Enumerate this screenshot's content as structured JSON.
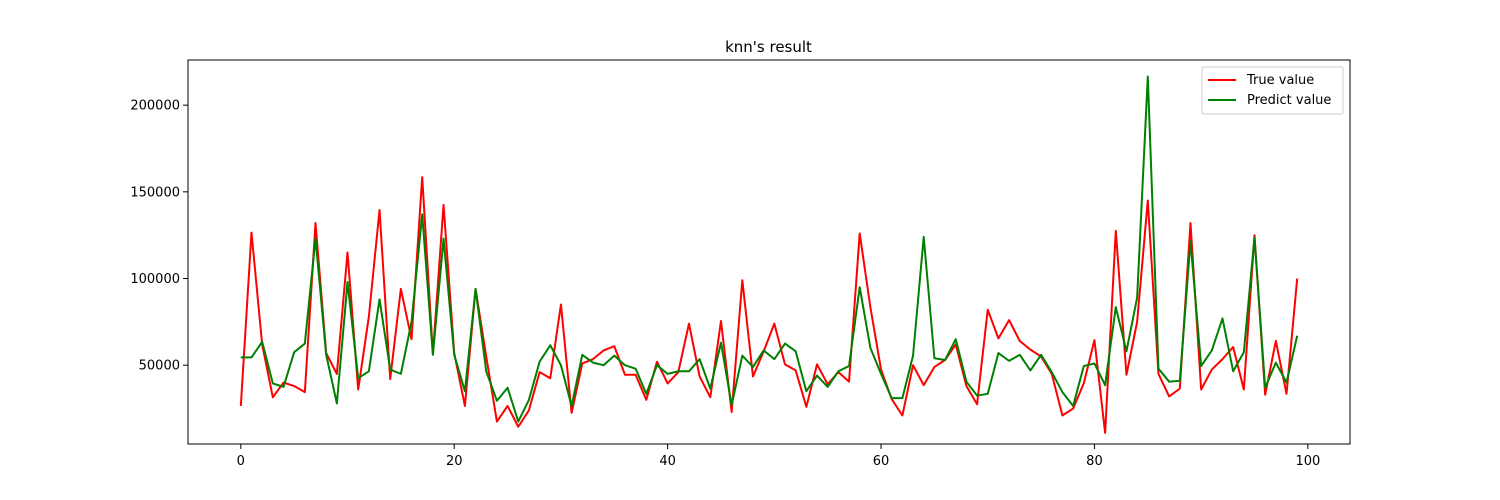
{
  "chart_data": {
    "type": "line",
    "title": "knn's result",
    "xlabel": "",
    "ylabel": "",
    "xlim": [
      -4.95,
      103.95
    ],
    "ylim": [
      4555,
      226045
    ],
    "xticks": [
      0,
      20,
      40,
      60,
      80,
      100
    ],
    "yticks": [
      50000,
      100000,
      150000,
      200000
    ],
    "grid": false,
    "legend_position": "top-right",
    "series": [
      {
        "name": "True value",
        "color": "#ff0000",
        "values": [
          26500,
          126500,
          62000,
          31500,
          40000,
          38000,
          34500,
          132000,
          57000,
          45000,
          115000,
          36000,
          78000,
          139500,
          42000,
          94000,
          65000,
          158500,
          56500,
          142500,
          57000,
          26500,
          94000,
          55000,
          17500,
          26500,
          14500,
          24000,
          46000,
          42500,
          85000,
          22500,
          51000,
          53500,
          58500,
          61000,
          44500,
          44500,
          30000,
          52000,
          39500,
          46000,
          74000,
          43500,
          31500,
          75500,
          23000,
          99000,
          43500,
          58000,
          74000,
          50500,
          47000,
          26000,
          50500,
          39000,
          46000,
          40500,
          126000,
          83500,
          47500,
          30500,
          21000,
          50000,
          38500,
          49000,
          53000,
          62000,
          38000,
          27500,
          82000,
          65500,
          76000,
          64000,
          59000,
          55000,
          45000,
          21000,
          25000,
          39500,
          64500,
          11000,
          127500,
          44500,
          75000,
          145000,
          45000,
          32000,
          36500,
          132000,
          36000,
          47500,
          53500,
          60500,
          36000,
          125000,
          33000,
          64000,
          33500,
          100000
        ]
      },
      {
        "name": "Predict value",
        "color": "#008000",
        "values": [
          54500,
          54500,
          63500,
          39500,
          37500,
          57500,
          62500,
          123000,
          56000,
          28000,
          98000,
          42500,
          46500,
          88000,
          47500,
          45000,
          75000,
          137000,
          56000,
          123000,
          56000,
          35000,
          94000,
          46500,
          29500,
          37000,
          17500,
          30000,
          52000,
          61500,
          50000,
          26500,
          56000,
          51500,
          50000,
          55500,
          50000,
          48000,
          33500,
          50000,
          45000,
          46500,
          46500,
          53500,
          36500,
          63000,
          27000,
          55500,
          49000,
          58500,
          53500,
          62500,
          58000,
          35000,
          44000,
          37500,
          46500,
          49500,
          95000,
          60000,
          45000,
          31000,
          31000,
          55500,
          124000,
          54000,
          53000,
          65000,
          40500,
          32500,
          33500,
          57000,
          52500,
          56000,
          47000,
          56000,
          46000,
          34500,
          26500,
          49500,
          51000,
          38500,
          83500,
          58000,
          89000,
          216500,
          48000,
          40500,
          41000,
          121500,
          49500,
          58500,
          77000,
          46500,
          57500,
          123500,
          37000,
          51500,
          40000,
          67000
        ]
      }
    ]
  }
}
